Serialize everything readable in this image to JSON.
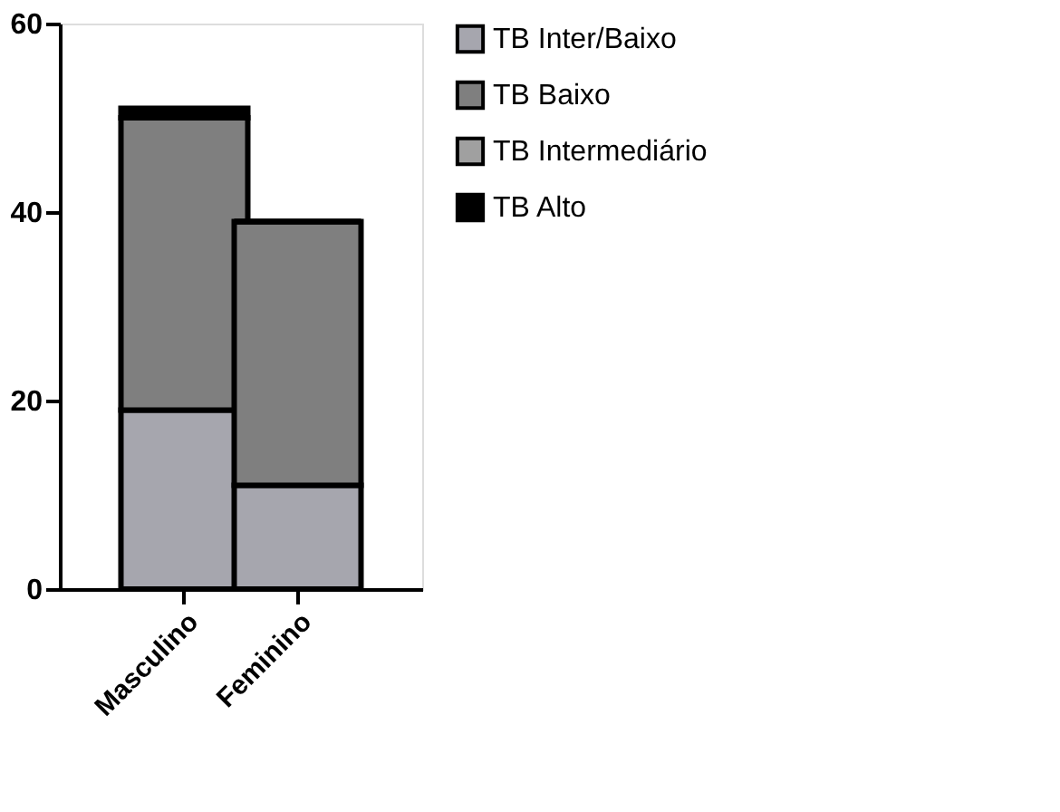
{
  "chart_data": {
    "type": "bar",
    "stacked": true,
    "categories": [
      "Masculino",
      "Feminino"
    ],
    "series": [
      {
        "name": "TB Inter/Baixo",
        "color": "#a6a6ae",
        "values": [
          19,
          11
        ]
      },
      {
        "name": "TB Baixo",
        "color": "#7f7f7f",
        "values": [
          31,
          28
        ]
      },
      {
        "name": "TB Intermediário",
        "color": "#a0a0a0",
        "values": [
          0,
          0
        ]
      },
      {
        "name": "TB Alto",
        "color": "#000000",
        "values": [
          1,
          0
        ]
      }
    ],
    "ylim": [
      0,
      60
    ],
    "yticks": [
      0,
      20,
      40,
      60
    ],
    "grid": false,
    "legend": "top right"
  }
}
